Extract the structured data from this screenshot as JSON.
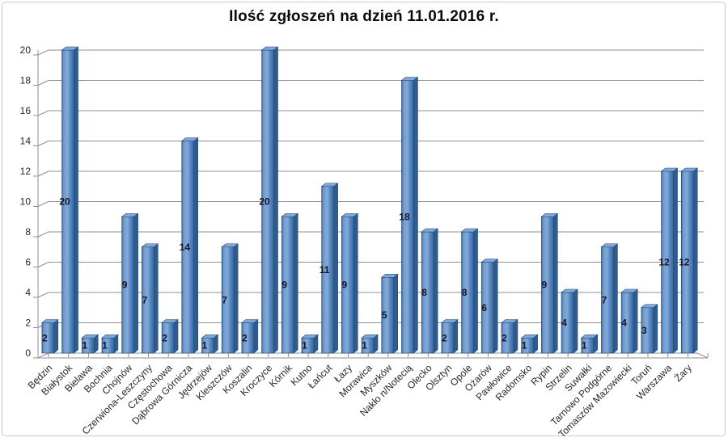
{
  "chart_data": {
    "type": "bar",
    "style": "3d-column",
    "title": "Ilość zgłoszeń na dzień 11.01.2016 r.",
    "xlabel": "",
    "ylabel": "",
    "ylim": [
      0,
      20
    ],
    "ytick_step": 2,
    "grid": true,
    "legend": false,
    "data_labels": "center",
    "categories": [
      "Będzin",
      "Białystok",
      "Bielawa",
      "Bochnia",
      "Chojnów",
      "Czerwiona-Leszczyny",
      "Częstochowa",
      "Dąbrowa Górnicza",
      "Jędrzejów",
      "Kleszczów",
      "Koszalin",
      "Kroczyce",
      "Kórnik",
      "Kutno",
      "Łańcut",
      "Łazy",
      "Morawica",
      "Myszków",
      "Nakło n/Notecią",
      "Olecko",
      "Olsztyn",
      "Opole",
      "Ożarów",
      "Pawłowice",
      "Radomsko",
      "Rypin",
      "Strzelin",
      "Suwałki",
      "Tarnowo Podgórne",
      "Tomaszów Mazowiecki",
      "Toruń",
      "Warszawa",
      "Żary"
    ],
    "values": [
      2,
      20,
      1,
      1,
      9,
      7,
      2,
      14,
      1,
      7,
      2,
      20,
      9,
      1,
      11,
      9,
      1,
      5,
      18,
      8,
      2,
      8,
      6,
      2,
      1,
      9,
      4,
      1,
      7,
      4,
      3,
      12,
      12
    ],
    "colors": {
      "bar_fill": "#4f81bd",
      "bar_highlight": "#84abd8",
      "bar_shadow": "#3a689e",
      "bar_edge": "#24466b",
      "bar_top": "#7fa8d8",
      "bar_side": "#2f5c8f",
      "gridline": "#8f8f8f",
      "axis_text": "#262626",
      "data_label": "#14142a",
      "title_text": "#0b0b0b",
      "background": "#ffffff",
      "frame_border": "#c9c9c9"
    }
  }
}
